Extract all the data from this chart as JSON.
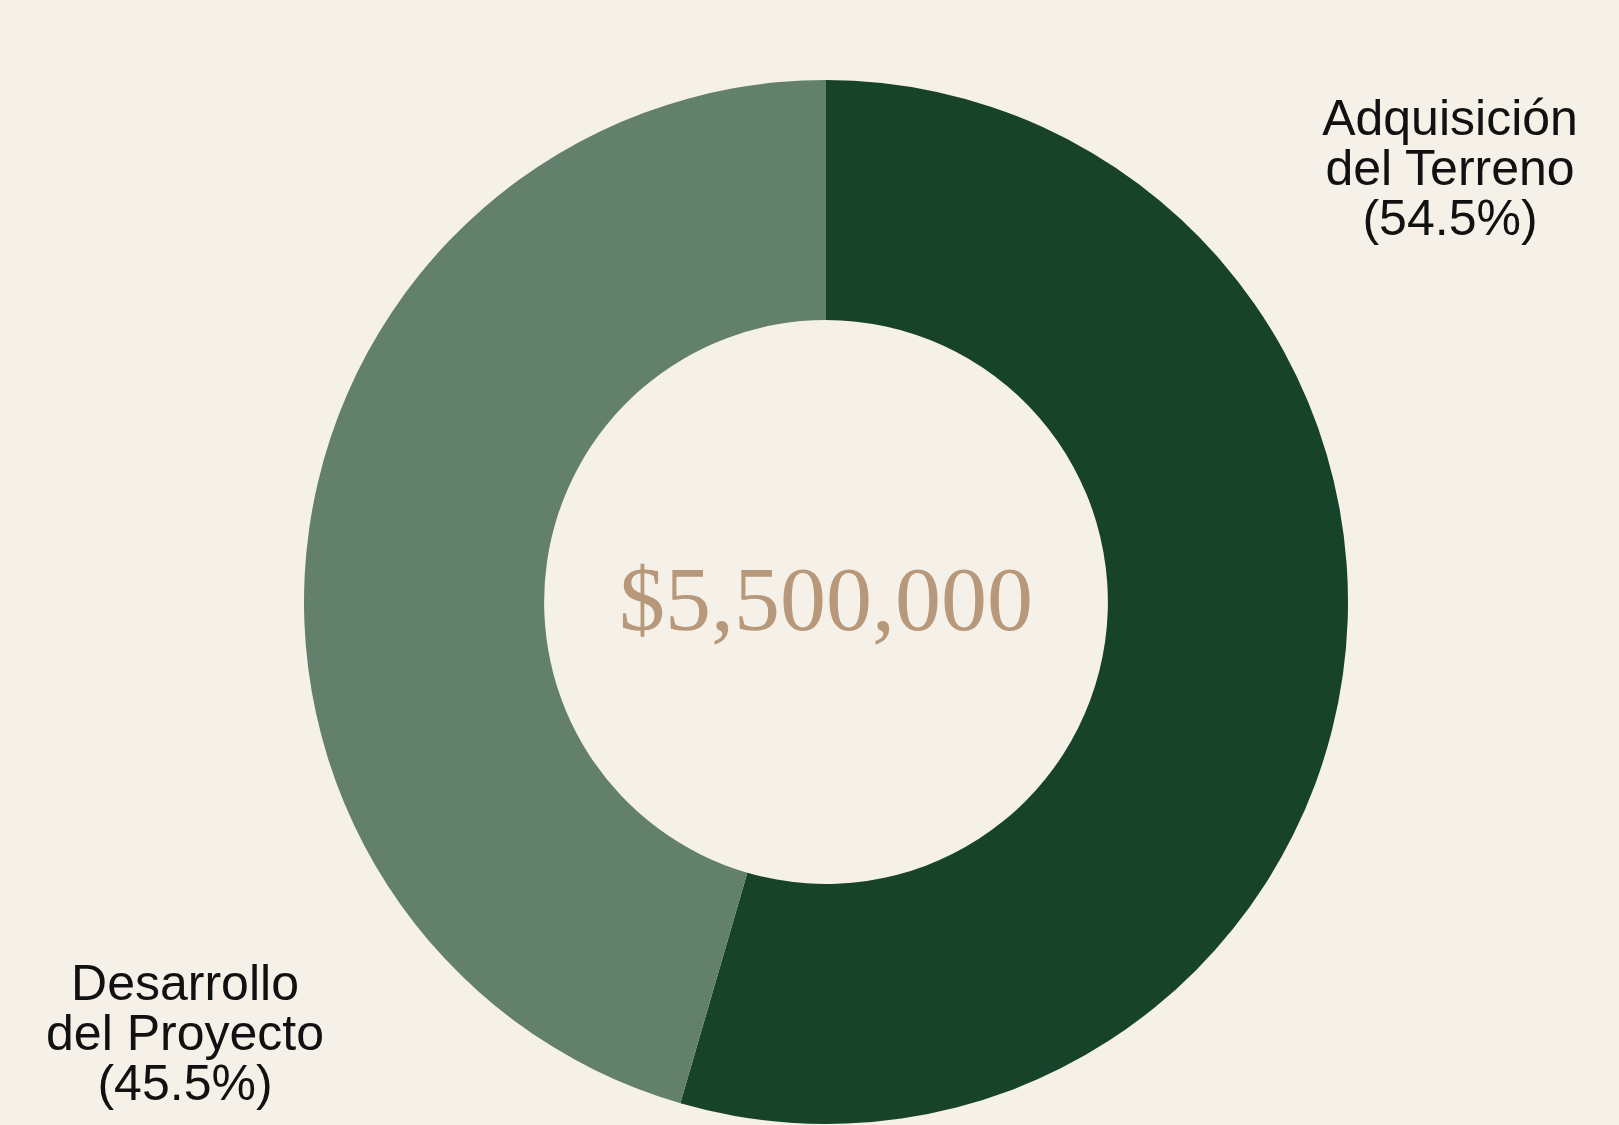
{
  "chart_data": {
    "type": "donut",
    "categories": [
      "Adquisición del Terreno",
      "Desarrollo del Proyecto"
    ],
    "values": [
      54.5,
      45.5
    ],
    "colors": [
      "#17432a",
      "#62806c"
    ],
    "value_labels": [
      "(54.5%)",
      "(45.5%)"
    ],
    "annotations": [
      "$5,500,000"
    ]
  }
}
